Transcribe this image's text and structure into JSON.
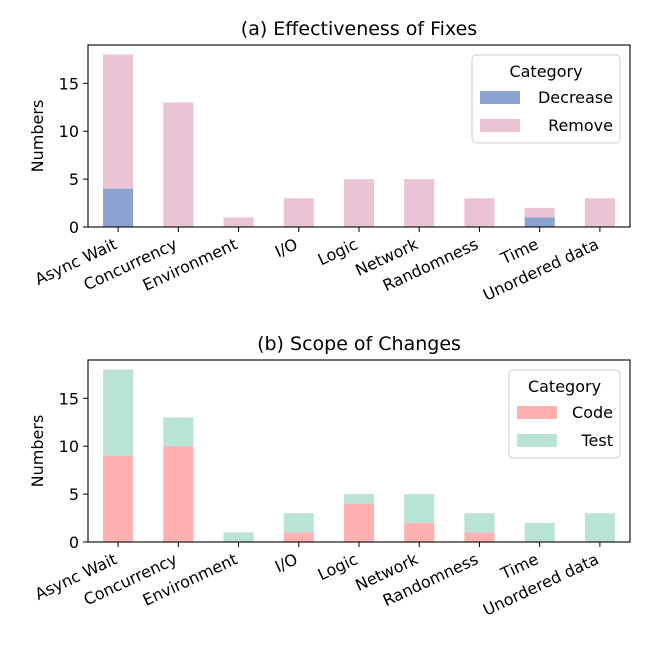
{
  "chart_data": [
    {
      "type": "bar",
      "stacked": true,
      "title": "(a) Effectiveness of Fixes",
      "xlabel": "",
      "ylabel": "Numbers",
      "ylim": [
        0,
        19
      ],
      "yticks": [
        0,
        5,
        10,
        15
      ],
      "categories": [
        "Async Wait",
        "Concurrency",
        "Environment",
        "I/O",
        "Logic",
        "Network",
        "Randomness",
        "Time",
        "Unordered data"
      ],
      "legend_title": "Category",
      "legend_position": "top-right",
      "series": [
        {
          "name": "Decrease",
          "color": "#8aa3d1",
          "values": [
            4,
            0,
            0,
            0,
            0,
            0,
            0,
            1,
            0
          ]
        },
        {
          "name": "Remove",
          "color": "#eac3d5",
          "values": [
            14,
            13,
            1,
            3,
            5,
            5,
            3,
            1,
            3
          ]
        }
      ]
    },
    {
      "type": "bar",
      "stacked": true,
      "title": "(b) Scope of Changes",
      "xlabel": "",
      "ylabel": "Numbers",
      "ylim": [
        0,
        19
      ],
      "yticks": [
        0,
        5,
        10,
        15
      ],
      "categories": [
        "Async Wait",
        "Concurrency",
        "Environment",
        "I/O",
        "Logic",
        "Network",
        "Randomness",
        "Time",
        "Unordered data"
      ],
      "legend_title": "Category",
      "legend_position": "top-right",
      "series": [
        {
          "name": "Code",
          "color": "#ffb0b0",
          "values": [
            9,
            10,
            0,
            1,
            4,
            2,
            1,
            0,
            0
          ]
        },
        {
          "name": "Test",
          "color": "#b8e3d5",
          "values": [
            9,
            3,
            1,
            2,
            1,
            3,
            2,
            2,
            3
          ]
        }
      ]
    }
  ]
}
